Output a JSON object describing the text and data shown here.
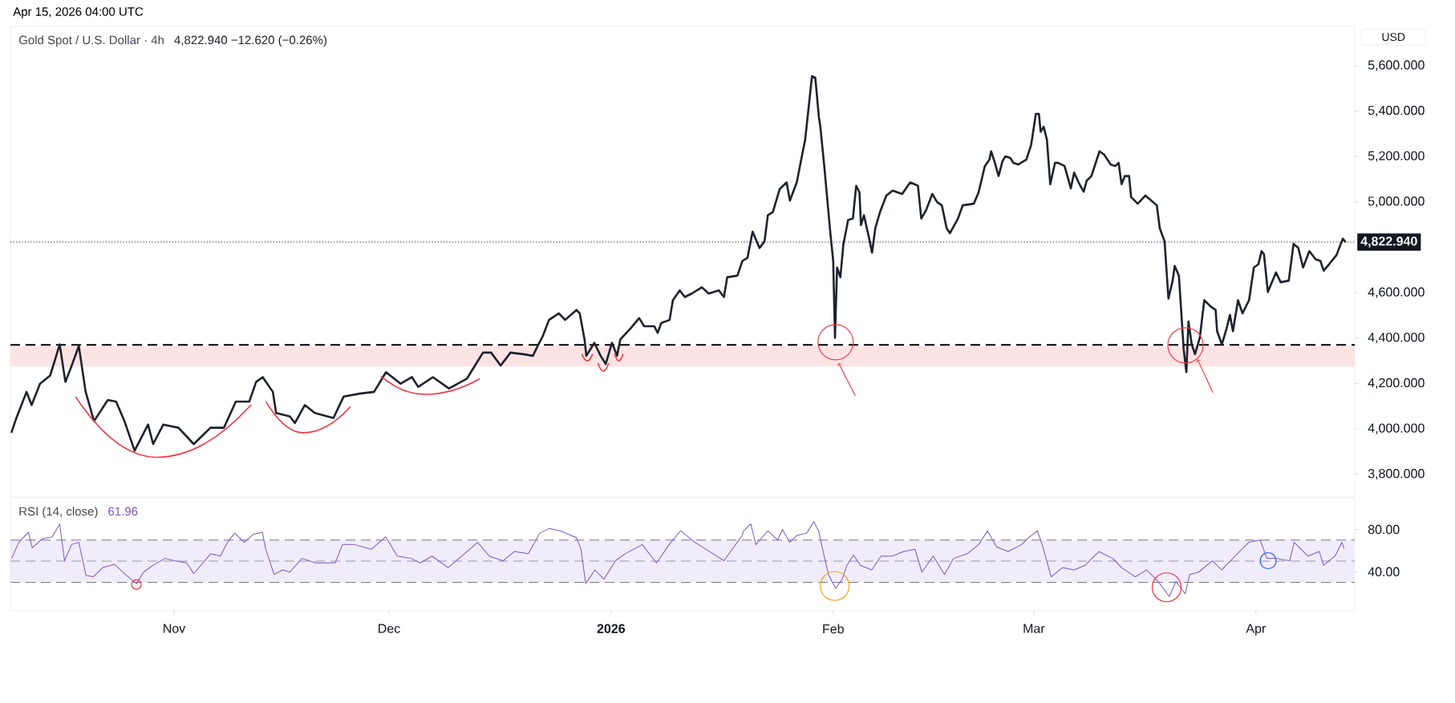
{
  "chart_data": [
    {
      "type": "line",
      "title": "Gold Spot / U.S. Dollar · 4h",
      "subtitle": "4,822.940  −12.620 (−0.26%)",
      "ylabel": "USD",
      "annotations": [
        "Apr 15, 2026 04:00 UTC"
      ],
      "x": [
        "2025-10-09T07:00",
        "2025-10-10T00:00",
        "2025-10-11T10:00",
        "2025-10-12T03:00",
        "2025-10-13T07:00",
        "2025-10-14T17:00",
        "2025-10-15T10:00",
        "2025-10-16T01:00",
        "2025-10-16T20:00",
        "2025-10-17T13:00",
        "2025-10-18T17:00",
        "2025-10-19T16:00",
        "2025-10-20T20:00",
        "2025-10-22T18:00",
        "2025-10-23T22:00",
        "2025-10-25T02:00",
        "2025-10-26T12:00",
        "2025-10-28T09:00",
        "2025-10-29T02:00",
        "2025-10-30T12:00",
        "2025-11-01T15:00",
        "2025-11-03T18:00",
        "2025-11-06T02:00",
        "2025-11-07T23:00",
        "2025-11-09T15:00",
        "2025-11-11T12:00",
        "2025-11-12T11:00",
        "2025-11-13T09:00",
        "2025-11-14T19:00",
        "2025-11-15T06:00",
        "2025-11-17T04:00",
        "2025-11-17T21:00",
        "2025-11-19T06:00",
        "2025-11-20T16:00",
        "2025-11-23T06:00",
        "2025-11-24T16:00",
        "2025-11-27T01:00",
        "2025-11-28T22:00",
        "2025-11-30T14:00",
        "2025-12-02T15:00",
        "2025-12-04T05:00",
        "2025-12-05T02:00",
        "2025-12-07T03:00",
        "2025-12-09T09:00",
        "2025-12-11T21:00",
        "2025-12-13T00:00",
        "2025-12-14T03:00",
        "2025-12-15T06:00",
        "2025-12-16T14:00",
        "2025-12-17T11:00",
        "2025-12-17T23:00",
        "2025-12-19T18:00",
        "2025-12-21T02:00",
        "2025-12-21T18:00",
        "2025-12-22T11:00",
        "2025-12-23T08:00",
        "2025-12-24T17:00",
        "2025-12-25T14:00",
        "2025-12-27T04:00",
        "2025-12-27T15:00",
        "2025-12-28T07:00",
        "2025-12-28T13:00",
        "2025-12-29T16:00",
        "2025-12-30T13:00",
        "2025-12-31T06:00",
        "2026-01-01T03:00",
        "2026-01-01T20:00",
        "2026-01-02T07:00",
        "2026-01-03T18:00",
        "2026-01-04T22:00",
        "2026-01-05T15:00",
        "2026-01-07T01:00",
        "2026-01-07T12:00",
        "2026-01-08T00:00",
        "2026-01-09T04:00",
        "2026-01-09T15:00",
        "2026-01-10T14:00",
        "2026-01-11T07:00",
        "2026-01-12T06:00",
        "2026-01-13T16:00",
        "2026-01-14T15:00",
        "2026-01-16T01:00",
        "2026-01-16T18:00",
        "2026-01-17T05:00",
        "2026-01-18T15:00",
        "2026-01-19T08:00",
        "2026-01-20T01:00",
        "2026-01-20T18:00",
        "2026-01-21T17:00",
        "2026-01-22T10:00",
        "2026-01-22T21:00",
        "2026-01-23T14:00",
        "2026-01-24T13:00",
        "2026-01-25T12:00",
        "2026-01-25T23:00",
        "2026-01-26T22:00",
        "2026-01-27T15:00",
        "2026-01-28T02:00",
        "2026-01-29T01:00",
        "2026-01-29T12:00",
        "2026-01-30T00:00",
        "2026-01-30T05:00",
        "2026-01-30T17:00",
        "2026-01-31T04:00",
        "2026-01-31T15:00",
        "2026-02-01T00:00",
        "2026-02-01T06:00",
        "2026-02-01T13:00",
        "2026-02-02T00:00",
        "2026-02-02T10:00",
        "2026-02-03T02:00",
        "2026-02-03T18:00",
        "2026-02-04T05:00",
        "2026-02-04T16:00",
        "2026-02-04T21:00",
        "2026-02-05T07:00",
        "2026-02-06T00:00",
        "2026-02-06T10:00",
        "2026-02-06T21:00",
        "2026-02-07T13:00",
        "2026-02-08T10:00",
        "2026-02-09T07:00",
        "2026-02-10T15:00",
        "2026-02-11T18:00",
        "2026-02-12T20:00",
        "2026-02-13T07:00",
        "2026-02-13T23:00",
        "2026-02-14T20:00",
        "2026-02-15T12:00",
        "2026-02-16T04:00",
        "2026-02-16T20:00",
        "2026-02-17T07:00",
        "2026-02-18T10:00",
        "2026-02-19T02:00",
        "2026-02-20T15:00",
        "2026-02-21T07:00",
        "2026-02-22T04:00",
        "2026-02-22T19:00",
        "2026-02-23T01:00",
        "2026-02-23T12:00",
        "2026-02-24T02:00",
        "2026-02-24T15:00",
        "2026-02-25T01:00",
        "2026-02-25T17:00",
        "2026-02-26T04:00",
        "2026-02-26T20:00",
        "2026-02-27T23:00",
        "2026-02-28T15:00",
        "2026-03-01T07:00",
        "2026-03-01T17:00",
        "2026-03-01T23:00",
        "2026-03-02T09:00",
        "2026-03-02T20:00",
        "2026-03-03T07:00",
        "2026-03-03T23:00",
        "2026-03-04T09:00",
        "2026-03-05T07:00",
        "2026-03-06T04:00",
        "2026-03-06T15:00",
        "2026-03-07T06:00",
        "2026-03-07T23:00",
        "2026-03-08T09:00",
        "2026-03-09T01:00",
        "2026-03-10T04:00",
        "2026-03-10T20:00",
        "2026-03-11T17:00",
        "2026-03-12T09:00",
        "2026-03-12T20:00",
        "2026-03-13T06:00",
        "2026-03-13T17:00",
        "2026-03-14T07:00",
        "2026-03-14T14:00",
        "2026-03-15T12:00",
        "2026-03-16T14:00",
        "2026-03-18T04:00",
        "2026-03-18T14:00",
        "2026-03-19T06:00",
        "2026-03-19T19:00",
        "2026-03-20T09:00",
        "2026-03-20T16:00",
        "2026-03-21T06:00",
        "2026-03-21T22:00",
        "2026-03-22T07:00",
        "2026-03-22T14:00",
        "2026-03-23T01:00",
        "2026-03-23T12:00",
        "2026-03-24T04:00",
        "2026-03-24T19:00",
        "2026-03-25T17:00",
        "2026-03-26T09:00",
        "2026-03-26T14:00",
        "2026-03-27T06:00",
        "2026-03-27T22:00",
        "2026-03-28T09:00",
        "2026-03-28T19:00",
        "2026-03-29T12:00",
        "2026-03-30T03:00",
        "2026-03-31T01:00",
        "2026-03-31T17:00",
        "2026-04-01T08:00",
        "2026-04-01T19:00",
        "2026-04-02T03:00",
        "2026-04-02T16:00",
        "2026-04-03T19:00",
        "2026-04-04T11:00",
        "2026-04-05T14:00",
        "2026-04-06T06:00",
        "2026-04-06T22:00",
        "2026-04-07T14:00",
        "2026-04-08T11:00",
        "2026-04-09T08:00",
        "2026-04-10T00:00",
        "2026-04-10T11:00",
        "2026-04-11T03:00",
        "2026-04-12T06:00",
        "2026-04-13T03:00",
        "2026-04-13T13:00"
      ],
      "series": [
        {
          "color": "#1e222d",
          "values": [
            3983,
            4048,
            4163,
            4105,
            4199,
            4235,
            4307,
            4372,
            4207,
            4264,
            4365,
            4163,
            4034,
            4127,
            4120,
            4034,
            3904,
            4019,
            3933,
            4019,
            4005,
            3933,
            4005,
            4005,
            4120,
            4120,
            4207,
            4228,
            4163,
            4070,
            4055,
            4026,
            4105,
            4070,
            4048,
            4142,
            4156,
            4163,
            4250,
            4199,
            4228,
            4185,
            4228,
            4178,
            4221,
            4279,
            4336,
            4336,
            4279,
            4315,
            4336,
            4329,
            4322,
            4365,
            4408,
            4480,
            4509,
            4480,
            4524,
            4509,
            4394,
            4322,
            4379,
            4322,
            4286,
            4379,
            4322,
            4394,
            4444,
            4488,
            4452,
            4452,
            4423,
            4466,
            4480,
            4567,
            4610,
            4581,
            4596,
            4624,
            4596,
            4610,
            4581,
            4668,
            4675,
            4740,
            4754,
            4869,
            4797,
            4826,
            4941,
            4956,
            5057,
            5086,
            5006,
            5086,
            5201,
            5273,
            5554,
            5547,
            5374,
            5331,
            5172,
            5014,
            4855,
            4740,
            4401,
            4711,
            4668,
            4812,
            4920,
            4927,
            5071,
            5042,
            4898,
            4941,
            4841,
            4776,
            4884,
            4956,
            5028,
            5050,
            5035,
            5086,
            5071,
            4927,
            4963,
            5035,
            4999,
            4985,
            4884,
            4862,
            4927,
            4985,
            4992,
            5042,
            5158,
            5186,
            5223,
            5179,
            5114,
            5179,
            5201,
            5194,
            5172,
            5165,
            5186,
            5251,
            5388,
            5388,
            5309,
            5331,
            5273,
            5078,
            5172,
            5172,
            5158,
            5060,
            5129,
            5086,
            5045,
            5093,
            5114,
            5223,
            5208,
            5165,
            5158,
            5172,
            5078,
            5114,
            5114,
            5021,
            4992,
            5028,
            4985,
            4884,
            4826,
            4574,
            4653,
            4718,
            4675,
            4351,
            4250,
            4473,
            4372,
            4329,
            4401,
            4567,
            4538,
            4524,
            4430,
            4372,
            4444,
            4502,
            4430,
            4567,
            4509,
            4567,
            4711,
            4725,
            4783,
            4769,
            4603,
            4689,
            4646,
            4653,
            4815,
            4797,
            4711,
            4783,
            4747,
            4740,
            4697,
            4722,
            4766,
            4838,
            4823
          ]
        }
      ],
      "xlim": [
        "2025-10-09T04:00",
        "2026-04-14T19:00"
      ],
      "ylim": [
        3700,
        5773
      ],
      "yticks": [
        {
          "value": 3800,
          "label": "3,800.000"
        },
        {
          "value": 4000,
          "label": "4,000.000"
        },
        {
          "value": 4200,
          "label": "4,200.000"
        },
        {
          "value": 4400,
          "label": "4,400.000"
        },
        {
          "value": 4600,
          "label": "4,600.000"
        },
        {
          "value": 5000,
          "label": "5,000.000"
        },
        {
          "value": 5200,
          "label": "5,200.000"
        },
        {
          "value": 5400,
          "label": "5,400.000"
        },
        {
          "value": 5600,
          "label": "5,600.000"
        }
      ],
      "tick_labels": "y",
      "ref_lines": [
        {
          "axis": "y",
          "value": 4370,
          "line_style": "dashed",
          "color": "#000000"
        },
        {
          "axis": "y",
          "value": 4822.94,
          "label": "4,822.940",
          "line_style": "dotted",
          "color": "#131722"
        }
      ],
      "bands": [
        {
          "axis": "y",
          "from": 4275,
          "to": 4365,
          "color": "#fde4e4"
        }
      ]
    },
    {
      "type": "line",
      "title": "RSI (14, close)",
      "subtitle": "61.96",
      "x": [
        "2025-10-09T08:00",
        "2025-10-10T08:00",
        "2025-10-11T16:00",
        "2025-10-12T05:00",
        "2025-10-13T16:00",
        "2025-10-15T00:00",
        "2025-10-16T01:00",
        "2025-10-16T17:00",
        "2025-10-17T17:00",
        "2025-10-18T17:00",
        "2025-10-19T17:00",
        "2025-10-20T17:00",
        "2025-10-22T01:00",
        "2025-10-23T17:00",
        "2025-10-25T05:00",
        "2025-10-26T18:00",
        "2025-10-27T18:00",
        "2025-10-29T02:00",
        "2025-10-30T18:00",
        "2025-11-01T02:00",
        "2025-11-02T18:00",
        "2025-11-03T18:00",
        "2025-11-06T03:00",
        "2025-11-07T11:00",
        "2025-11-08T11:00",
        "2025-11-09T11:00",
        "2025-11-10T19:00",
        "2025-11-12T03:00",
        "2025-11-13T08:00",
        "2025-11-13T19:00",
        "2025-11-14T23:00",
        "2025-11-16T04:00",
        "2025-11-17T04:00",
        "2025-11-18T20:00",
        "2025-11-20T20:00",
        "2025-11-23T12:00",
        "2025-11-24T12:00",
        "2025-11-26T05:00",
        "2025-11-28T13:00",
        "2025-11-30T13:00",
        "2025-12-02T04:00",
        "2025-12-04T02:00",
        "2025-12-05T09:00",
        "2025-12-07T00:00",
        "2025-12-09T06:00",
        "2025-12-11T04:00",
        "2025-12-13T09:00",
        "2025-12-15T00:00",
        "2025-12-16T22:00",
        "2025-12-18T12:00",
        "2025-12-20T11:00",
        "2025-12-22T01:00",
        "2025-12-23T08:00",
        "2025-12-24T22:00",
        "2025-12-27T04:00",
        "2025-12-27T19:00",
        "2025-12-28T11:00",
        "2025-12-29T18:00",
        "2025-12-31T00:00",
        "2026-01-01T15:00",
        "2026-01-02T23:00",
        "2026-01-05T08:00",
        "2026-01-07T08:00",
        "2026-01-09T08:00",
        "2026-01-10T17:00",
        "2026-01-12T17:00",
        "2026-01-14T18:00",
        "2026-01-16T18:00",
        "2026-01-19T07:00",
        "2026-01-19T12:00",
        "2026-01-20T12:00",
        "2026-01-21T05:00",
        "2026-01-22T21:00",
        "2026-01-24T06:00",
        "2026-01-24T22:00",
        "2026-01-25T22:00",
        "2026-01-26T22:00",
        "2026-01-28T07:00",
        "2026-01-29T07:00",
        "2026-01-29T23:00",
        "2026-01-30T16:00",
        "2026-01-31T08:00",
        "2026-02-01T08:00",
        "2026-02-02T06:00",
        "2026-02-02T22:00",
        "2026-02-03T20:00",
        "2026-02-04T19:00",
        "2026-02-06T09:00",
        "2026-02-07T16:00",
        "2026-02-09T06:00",
        "2026-02-10T20:00",
        "2026-02-12T10:00",
        "2026-02-13T09:00",
        "2026-02-14T23:00",
        "2026-02-16T13:00",
        "2026-02-17T19:00",
        "2026-02-19T17:00",
        "2026-02-21T07:00",
        "2026-02-22T13:00",
        "2026-02-23T19:00",
        "2026-02-25T10:00",
        "2026-02-27T07:00",
        "2026-02-28T06:00",
        "2026-03-01T12:00",
        "2026-03-02T04:00",
        "2026-03-03T10:00",
        "2026-03-05T00:00",
        "2026-03-06T14:00",
        "2026-03-08T04:00",
        "2026-03-10T02:00",
        "2026-03-12T00:00",
        "2026-03-13T06:00",
        "2026-03-15T04:00",
        "2026-03-16T18:00",
        "2026-03-18T08:00",
        "2026-03-19T22:00",
        "2026-03-20T20:00",
        "2026-03-22T03:00",
        "2026-03-22T18:00",
        "2026-03-24T00:00",
        "2026-03-25T22:00",
        "2026-03-27T05:00",
        "2026-03-29T02:00",
        "2026-03-31T00:00",
        "2026-04-01T14:00",
        "2026-04-02T13:00",
        "2026-04-03T19:00",
        "2026-04-05T17:00",
        "2026-04-06T08:00",
        "2026-04-08T06:00",
        "2026-04-09T20:00",
        "2026-04-10T11:00",
        "2026-04-12T01:00",
        "2026-04-13T00:00",
        "2026-04-13T07:00"
      ],
      "series": [
        {
          "color": "#7e57c2",
          "values": [
            52.6,
            67.8,
            77.4,
            62.6,
            71.3,
            73.0,
            85.2,
            50.4,
            65.7,
            67.8,
            36.5,
            35.2,
            43.9,
            47.0,
            37.4,
            28.7,
            39.6,
            46.1,
            52.6,
            50.4,
            48.3,
            38.3,
            57.0,
            54.8,
            67.8,
            76.5,
            67.8,
            75.7,
            77.4,
            61.3,
            37.4,
            41.7,
            39.6,
            52.6,
            48.3,
            48.3,
            65.7,
            65.7,
            61.3,
            73.0,
            54.8,
            52.6,
            48.3,
            54.8,
            43.9,
            54.8,
            67.8,
            54.8,
            50.4,
            59.1,
            57.0,
            76.5,
            80.9,
            78.7,
            72.2,
            61.3,
            28.7,
            41.7,
            33.0,
            50.4,
            57.0,
            65.7,
            48.3,
            67.8,
            78.7,
            67.8,
            59.1,
            50.4,
            74.3,
            78.7,
            85.2,
            65.7,
            78.7,
            70.0,
            80.0,
            67.8,
            74.3,
            76.5,
            87.4,
            78.7,
            57.0,
            37.4,
            24.3,
            33.0,
            46.1,
            55.7,
            46.1,
            41.7,
            54.8,
            54.8,
            59.1,
            61.3,
            39.6,
            54.8,
            37.4,
            52.6,
            57.0,
            65.7,
            78.7,
            63.5,
            59.1,
            65.7,
            72.2,
            78.7,
            65.7,
            35.2,
            43.9,
            41.7,
            46.1,
            59.1,
            52.6,
            43.9,
            35.2,
            41.7,
            30.9,
            16.5,
            30.9,
            19.1,
            37.4,
            39.6,
            50.4,
            41.7,
            54.8,
            67.8,
            70.0,
            52.6,
            52.6,
            50.4,
            67.8,
            54.8,
            59.1,
            46.1,
            54.8,
            67.8,
            62.0
          ]
        }
      ],
      "xlim": [
        "2025-10-09T04:00",
        "2026-04-14T19:00"
      ],
      "ylim": [
        3,
        110
      ],
      "xticks": [
        {
          "value": "2025-11-01",
          "label": "Nov"
        },
        {
          "value": "2025-12-01",
          "label": "Dec"
        },
        {
          "value": "2026-01-01",
          "label": "2026"
        },
        {
          "value": "2026-02-01",
          "label": "Feb"
        },
        {
          "value": "2026-03-01",
          "label": "Mar"
        },
        {
          "value": "2026-04-01",
          "label": "Apr"
        }
      ],
      "yticks": [
        {
          "value": 40,
          "label": "40.00"
        },
        {
          "value": 80,
          "label": "80.00"
        }
      ],
      "ref_lines": [
        {
          "axis": "y",
          "value": 70,
          "line_style": "dashed",
          "color": "#787b86"
        },
        {
          "axis": "y",
          "value": 50,
          "line_style": "dashed",
          "color": "#9598a1"
        },
        {
          "axis": "y",
          "value": 30,
          "line_style": "dashed",
          "color": "#787b86"
        }
      ],
      "bands": [
        {
          "axis": "y",
          "from": 30,
          "to": 70,
          "color": "#f0ecfa"
        }
      ]
    }
  ]
}
